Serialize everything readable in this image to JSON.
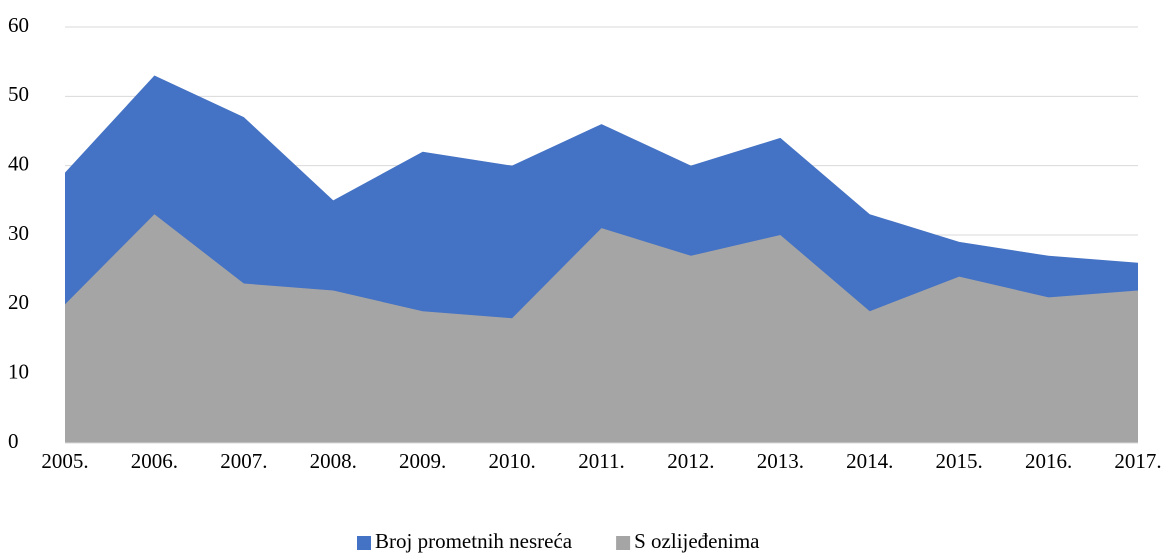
{
  "chart_data": {
    "type": "area",
    "categories": [
      "2005.",
      "2006.",
      "2007.",
      "2008.",
      "2009.",
      "2010.",
      "2011.",
      "2012.",
      "2013.",
      "2014.",
      "2015.",
      "2016.",
      "2017."
    ],
    "series": [
      {
        "name": "Broj prometnih nesreća",
        "color": "#4472c4",
        "values": [
          39,
          53,
          47,
          35,
          42,
          40,
          46,
          40,
          44,
          33,
          29,
          27,
          26
        ]
      },
      {
        "name": "S ozlijeđenima",
        "color": "#a5a5a5",
        "values": [
          20,
          33,
          23,
          22,
          19,
          18,
          31,
          27,
          30,
          19,
          24,
          21,
          22
        ]
      }
    ],
    "ylim": [
      0,
      60
    ],
    "yticks": [
      0,
      10,
      20,
      30,
      40,
      50,
      60
    ],
    "grid": true,
    "legend": "bottom"
  }
}
